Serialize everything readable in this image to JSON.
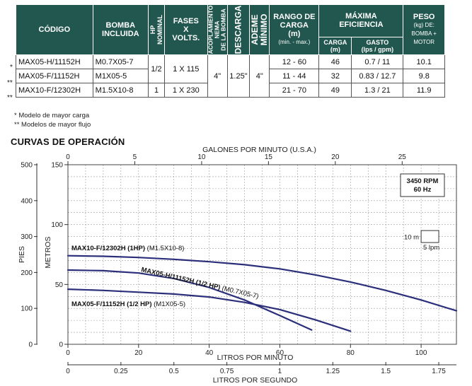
{
  "table": {
    "headers": {
      "codigo": "CÓDIGO",
      "bomba_l1": "BOMBA",
      "bomba_l2": "INCLUIDA",
      "hp_l1": "HP",
      "hp_l2": "NOMINAL",
      "fases_l1": "FASES",
      "fases_l2": "X",
      "fases_l3": "VOLTS.",
      "acop_l1": "ACOPLAMIENTO",
      "acop_l2": "NEMA",
      "acop_l3": "DE LA BOMBA",
      "descarga": "DESCARGA",
      "ademe_l1": "ADEME",
      "ademe_l2": "MÍNIMO",
      "rango_l1": "RANGO DE",
      "rango_l2": "CARGA",
      "rango_l3": "(m)",
      "rango_l4": "(min. - max.)",
      "max_l1": "MÁXIMA",
      "max_l2": "EFICIENCIA",
      "carga_l1": "CARGA",
      "carga_l2": "(m)",
      "gasto_l1": "GASTO",
      "gasto_l2": "(lps / gpm)",
      "peso_l1": "PESO",
      "peso_l2": "(kg) DE:",
      "peso_l3": "BOMBA +",
      "peso_l4": "MOTOR"
    },
    "rows": [
      {
        "marker": "*",
        "codigo": "MAX05-H/11152H",
        "bomba": "M0.7X05-7",
        "rango": "12 - 60",
        "carga": "46",
        "gasto": "0.7 / 11",
        "peso": "10.1"
      },
      {
        "marker": "**",
        "codigo": "MAX05-F/11152H",
        "bomba": "M1X05-5",
        "rango": "11 - 44",
        "carga": "32",
        "gasto": "0.83 / 12.7",
        "peso": "9.8"
      },
      {
        "marker": "**",
        "codigo": "MAX10-F/12302H",
        "bomba": "M1.5X10-8",
        "rango": "21 - 70",
        "carga": "49",
        "gasto": "1.3 / 21",
        "peso": "11.9"
      }
    ],
    "merged": {
      "hp_half": "1/2",
      "hp_one": "1",
      "fases_115": "1 X 115",
      "fases_230": "1 X 230",
      "acoplamiento": "4\"",
      "descarga": "1.25\"",
      "ademe": "4\""
    }
  },
  "notes": {
    "n1": "* Modelo de mayor carga",
    "n2": "** Modelos de mayor flujo"
  },
  "section_title": "CURVAS DE OPERACIÓN",
  "chart_data": {
    "type": "line",
    "title": "",
    "x_axes": {
      "top": {
        "label": "GALONES POR MINUTO (U.S.A.)",
        "range": [
          0,
          29
        ],
        "ticks": [
          "0",
          "5",
          "10",
          "15",
          "20",
          "25"
        ]
      },
      "bottom_primary": {
        "label": "LITROS POR MINUTO",
        "range": [
          0,
          110
        ],
        "ticks": [
          "0",
          "20",
          "40",
          "60",
          "80",
          "100"
        ]
      },
      "bottom_secondary": {
        "label": "LITROS POR SEGUNDO",
        "range": [
          0,
          1.833
        ],
        "ticks": [
          "0",
          "0.25",
          "0.5",
          "0.75",
          "1",
          "1.25",
          "1.5",
          "1.75"
        ]
      }
    },
    "y_axes": {
      "outer": {
        "label": "PIES",
        "range": [
          0,
          500
        ],
        "ticks": [
          "0",
          "100",
          "200",
          "300",
          "400",
          "500"
        ]
      },
      "inner": {
        "label": "METROS",
        "range": [
          0,
          150
        ],
        "ticks": [
          "0",
          "50",
          "100",
          "150"
        ]
      }
    },
    "legend_box": {
      "line1": "3450 RPM",
      "line2": "60 Hz"
    },
    "scale_box": {
      "height_label": "10 m",
      "width_label": "5 lpm"
    },
    "grid": true,
    "series": [
      {
        "name": "MAX10-F/12302H (1HP)",
        "pump": "(M1.5X10-8)",
        "color": "#2b2f7a",
        "x_lpm": [
          0,
          10,
          20,
          30,
          40,
          50,
          60,
          70,
          80,
          90,
          100,
          110
        ],
        "y_m": [
          74,
          73.5,
          72.5,
          71,
          69,
          66.5,
          63,
          58,
          52,
          45,
          37,
          28
        ]
      },
      {
        "name": "MAX05-H/11152H (1/2 HP)",
        "pump": "(M0.7X05-7)",
        "color": "#2b2f7a",
        "x_lpm": [
          0,
          10,
          20,
          30,
          40,
          50,
          60,
          69
        ],
        "y_m": [
          62,
          61.5,
          59.5,
          55,
          47.5,
          37,
          24,
          12
        ]
      },
      {
        "name": "MAX05-F/11152H (1/2 HP)",
        "pump": "(M1X05-5)",
        "color": "#2b2f7a",
        "x_lpm": [
          0,
          10,
          20,
          30,
          40,
          50,
          60,
          70,
          80
        ],
        "y_m": [
          46,
          45,
          43.5,
          42,
          39.5,
          35,
          29,
          20.5,
          11
        ]
      }
    ]
  }
}
